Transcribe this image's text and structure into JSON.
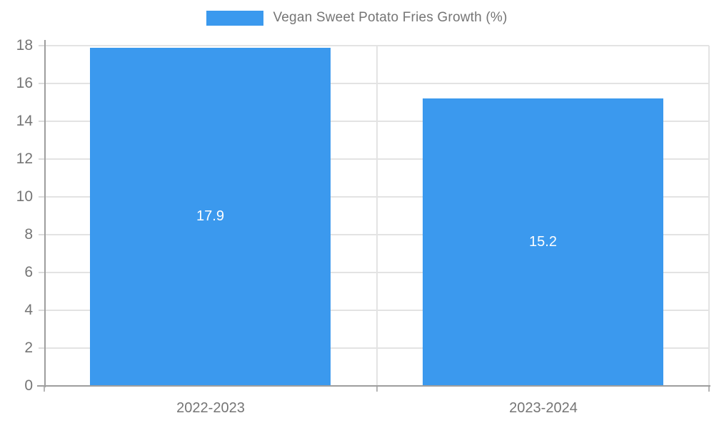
{
  "legend": {
    "label": "Vegan Sweet Potato Fries Growth (%)",
    "swatch_color": "#3b99ee"
  },
  "chart_data": {
    "type": "bar",
    "categories": [
      "2022-2023",
      "2023-2024"
    ],
    "values": [
      17.9,
      15.2
    ],
    "data_labels": [
      "17.9",
      "15.2"
    ],
    "series_name": "Vegan Sweet Potato Fries Growth (%)",
    "title": "",
    "xlabel": "",
    "ylabel": "",
    "ylim": [
      0,
      18
    ],
    "yticks": [
      0,
      2,
      4,
      6,
      8,
      10,
      12,
      14,
      16,
      18
    ],
    "grid": true,
    "legend_position": "top-center",
    "bar_color": "#3b99ee",
    "data_label_color": "#fefefe",
    "axis_color": "#9e9e9e",
    "gridline_color": "#e3e3e3",
    "tick_label_color": "#757575"
  }
}
